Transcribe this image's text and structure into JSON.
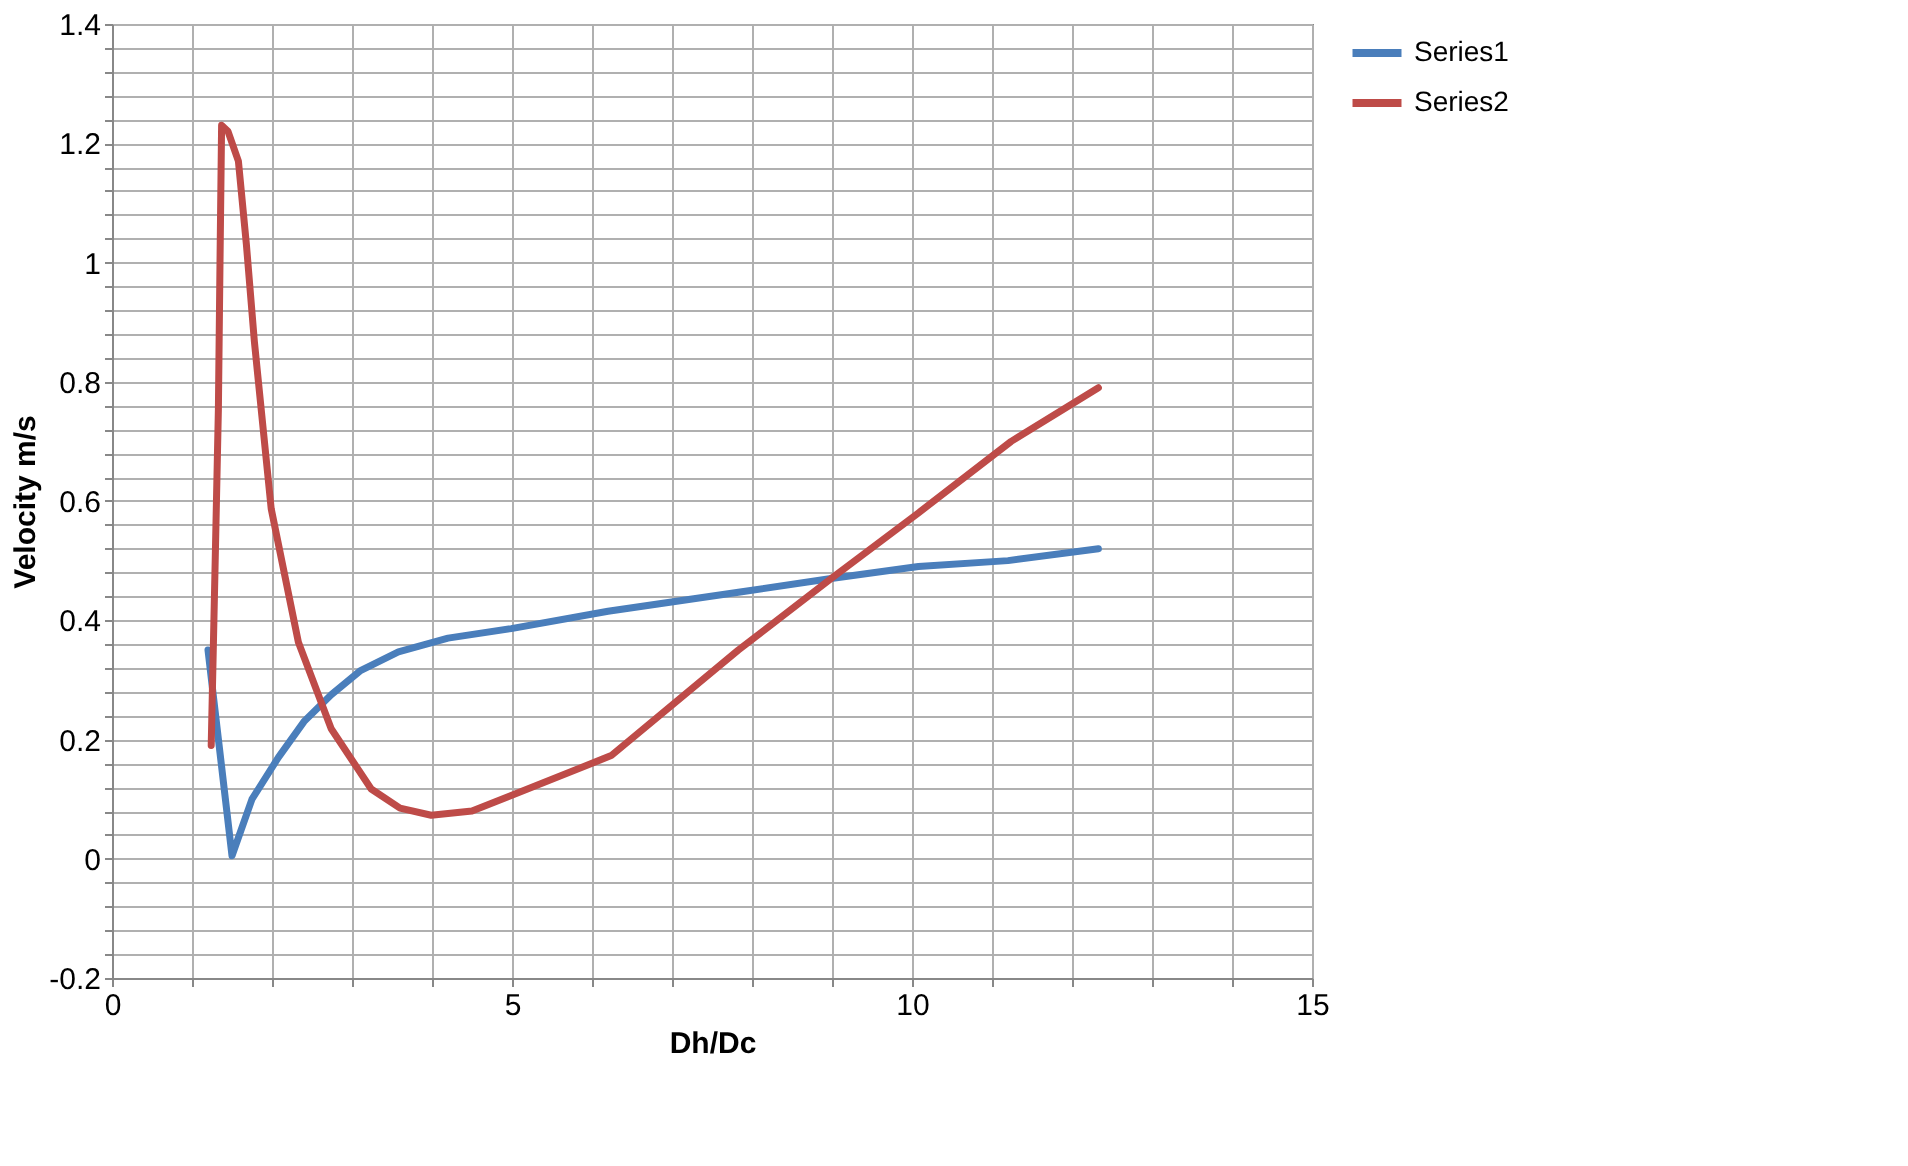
{
  "chart_data": {
    "type": "line",
    "xlabel": "Dh/Dc",
    "ylabel": "Velocity  m/s",
    "xlim": [
      0,
      15
    ],
    "ylim": [
      -0.2,
      1.4
    ],
    "xticks": [
      0,
      {
        "value": 1,
        "label": null
      },
      {
        "value": 2,
        "label": null
      },
      {
        "value": 3,
        "label": null
      },
      {
        "value": 4,
        "label": null
      },
      5,
      {
        "value": 6,
        "label": null
      },
      {
        "value": 7,
        "label": null
      },
      {
        "value": 8,
        "label": null
      },
      {
        "value": 9,
        "label": null
      },
      10,
      {
        "value": 11,
        "label": null
      },
      {
        "value": 12,
        "label": null
      },
      {
        "value": 13,
        "label": null
      },
      {
        "value": 14,
        "label": null
      },
      15
    ],
    "yticks": [
      -0.2,
      {
        "value": -0.16,
        "label": null
      },
      {
        "value": -0.12,
        "label": null
      },
      {
        "value": -0.08,
        "label": null
      },
      {
        "value": -0.04,
        "label": null
      },
      0,
      {
        "value": 0.04,
        "label": null
      },
      {
        "value": 0.08,
        "label": null
      },
      {
        "value": 0.12,
        "label": null
      },
      {
        "value": 0.16,
        "label": null
      },
      0.2,
      {
        "value": 0.24,
        "label": null
      },
      {
        "value": 0.28,
        "label": null
      },
      {
        "value": 0.32,
        "label": null
      },
      {
        "value": 0.36,
        "label": null
      },
      0.4,
      {
        "value": 0.44,
        "label": null
      },
      {
        "value": 0.48,
        "label": null
      },
      {
        "value": 0.52,
        "label": null
      },
      {
        "value": 0.56,
        "label": null
      },
      0.6,
      {
        "value": 0.64,
        "label": null
      },
      {
        "value": 0.68,
        "label": null
      },
      {
        "value": 0.72,
        "label": null
      },
      {
        "value": 0.76,
        "label": null
      },
      0.8,
      {
        "value": 0.84,
        "label": null
      },
      {
        "value": 0.88,
        "label": null
      },
      {
        "value": 0.92,
        "label": null
      },
      {
        "value": 0.96,
        "label": null
      },
      1,
      {
        "value": 1.04,
        "label": null
      },
      {
        "value": 1.08,
        "label": null
      },
      {
        "value": 1.12,
        "label": null
      },
      {
        "value": 1.16,
        "label": null
      },
      1.2,
      {
        "value": 1.24,
        "label": null
      },
      {
        "value": 1.28,
        "label": null
      },
      {
        "value": 1.32,
        "label": null
      },
      {
        "value": 1.36,
        "label": null
      },
      1.4
    ],
    "grid": true,
    "legend": "right",
    "series": [
      {
        "name": "Series1",
        "color": "#4a7ebb",
        "x": [
          1.2,
          1.5,
          1.75,
          2.08,
          2.4,
          2.74,
          3.1,
          3.58,
          4.2,
          4.99,
          6.2,
          7.83,
          8.99,
          10.08,
          11.2,
          12.33
        ],
        "values": [
          0.35,
          0.005,
          0.1,
          0.17,
          0.23,
          0.275,
          0.315,
          0.347,
          0.37,
          0.386,
          0.415,
          0.447,
          0.47,
          0.49,
          0.5,
          0.52
        ]
      },
      {
        "name": "Series2",
        "color": "#be4b48",
        "x": [
          1.24,
          1.29,
          1.33,
          1.35,
          1.37,
          1.45,
          1.58,
          1.68,
          1.78,
          1.99,
          2.33,
          2.74,
          3.24,
          3.6,
          3.99,
          4.5,
          4.99,
          6.24,
          7.83,
          8.99,
          10.08,
          11.24,
          12.33
        ],
        "values": [
          0.19,
          0.5,
          0.755,
          1.0,
          1.23,
          1.22,
          1.17,
          1.03,
          0.867,
          0.587,
          0.363,
          0.218,
          0.117,
          0.085,
          0.073,
          0.08,
          0.106,
          0.173,
          0.35,
          0.47,
          0.58,
          0.7,
          0.79
        ]
      }
    ]
  }
}
